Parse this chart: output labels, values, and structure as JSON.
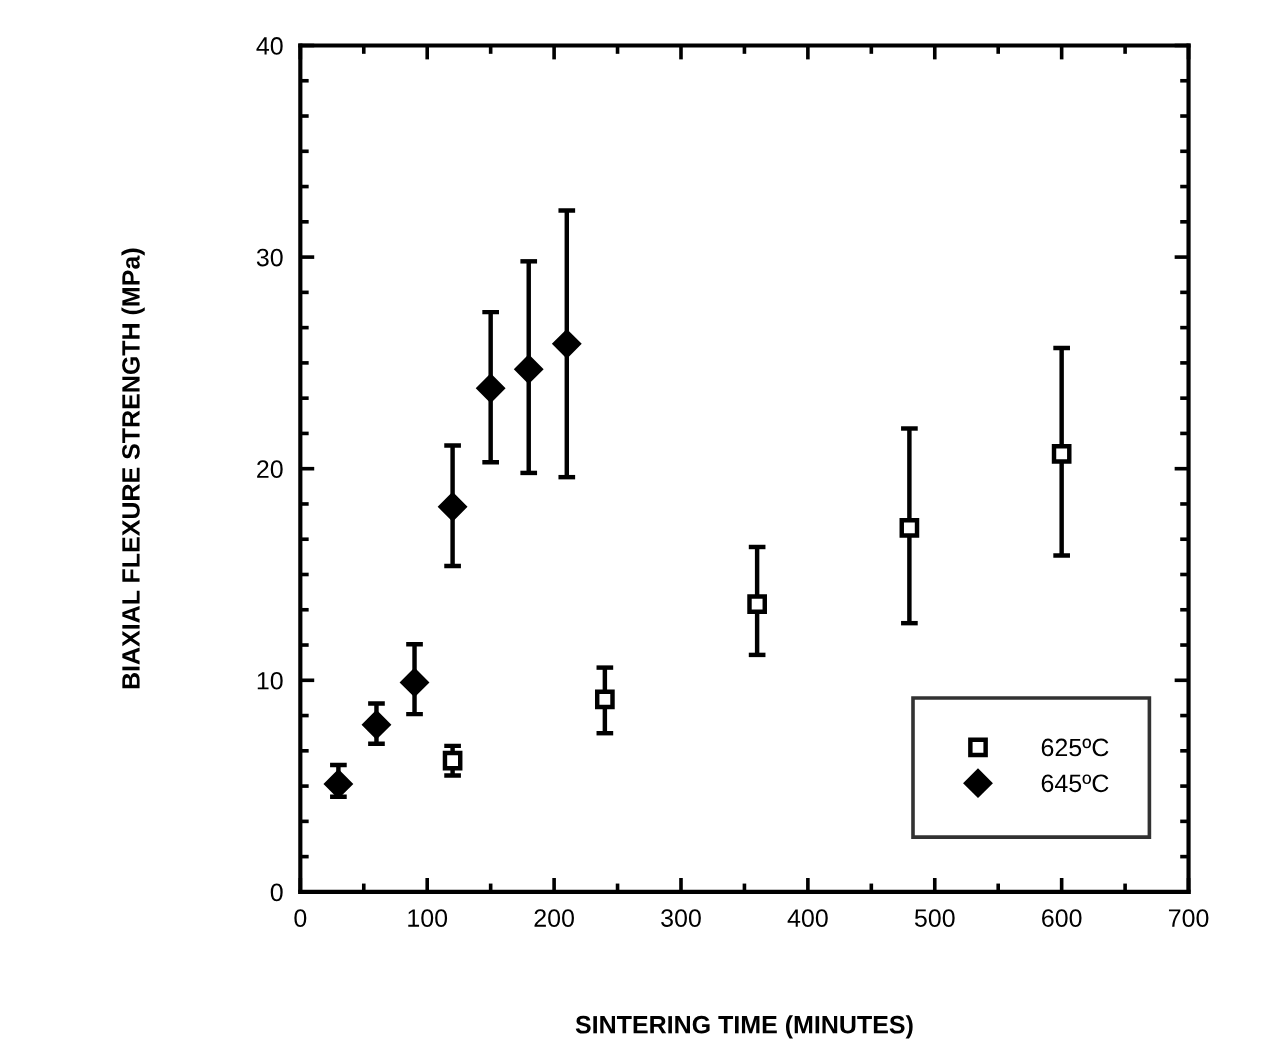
{
  "chart_data": {
    "type": "scatter",
    "xlabel": "SINTERING TIME (MINUTES)",
    "ylabel": "BIAXIAL FLEXURE STRENGTH (MPa)",
    "xlim": [
      0,
      700
    ],
    "ylim": [
      0,
      40
    ],
    "xticks": [
      0,
      100,
      200,
      300,
      400,
      500,
      600,
      700
    ],
    "yticks": [
      0,
      10,
      20,
      30,
      40
    ],
    "grid": false,
    "legend": "bottom right",
    "series": [
      {
        "name": "625ºC",
        "color": "#000000",
        "marker": "square",
        "x": [
          120,
          240,
          360,
          480,
          600
        ],
        "values": [
          6.2,
          9.1,
          13.6,
          17.2,
          20.7
        ],
        "errors": [
          [
            5.5,
            6.9
          ],
          [
            7.5,
            10.6
          ],
          [
            11.2,
            16.3
          ],
          [
            12.7,
            21.9
          ],
          [
            15.9,
            25.7
          ]
        ]
      },
      {
        "name": "645ºC",
        "color": "#000000",
        "marker": "diamond",
        "x": [
          30,
          60,
          90,
          120,
          150,
          180,
          210
        ],
        "values": [
          5.1,
          7.9,
          9.9,
          18.2,
          23.8,
          24.7,
          25.9
        ],
        "errors": [
          [
            4.5,
            6.0
          ],
          [
            7.0,
            8.9
          ],
          [
            8.4,
            11.7
          ],
          [
            15.4,
            21.1
          ],
          [
            20.3,
            27.4
          ],
          [
            19.8,
            29.8
          ],
          [
            19.6,
            32.2
          ]
        ]
      }
    ]
  }
}
